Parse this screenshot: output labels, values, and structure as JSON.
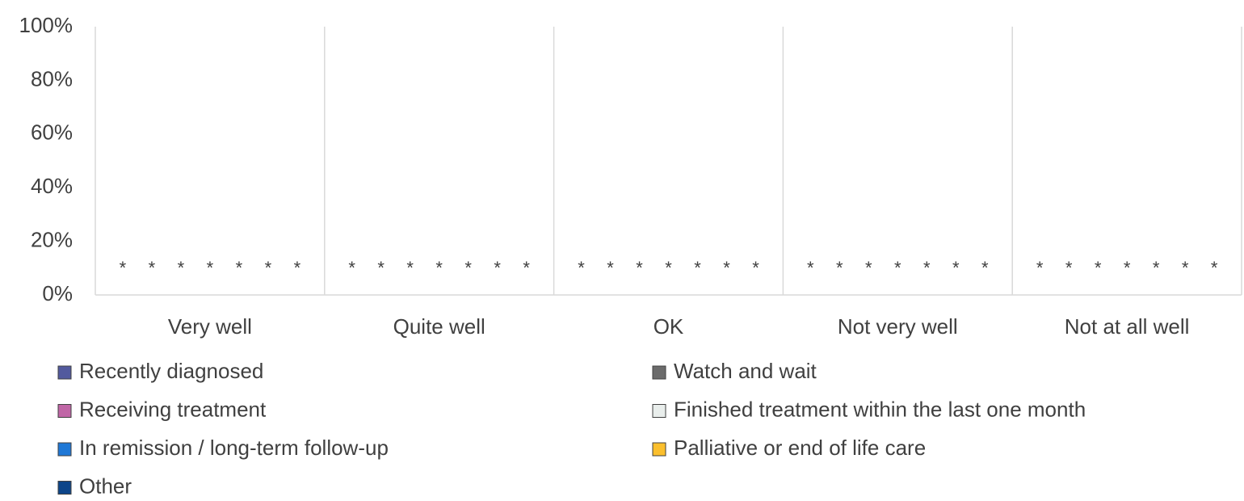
{
  "chart_data": {
    "type": "bar",
    "categories": [
      "Very well",
      "Quite well",
      "OK",
      "Not very well",
      "Not at all well"
    ],
    "series": [
      {
        "name": "Recently diagnosed",
        "color": "#525a9e",
        "values": [
          null,
          null,
          null,
          null,
          null
        ],
        "value_labels": [
          "*",
          "*",
          "*",
          "*",
          "*"
        ]
      },
      {
        "name": "Watch and wait",
        "color": "#6b6b6b",
        "values": [
          null,
          null,
          null,
          null,
          null
        ],
        "value_labels": [
          "*",
          "*",
          "*",
          "*",
          "*"
        ]
      },
      {
        "name": "Receiving treatment",
        "color": "#c066a6",
        "values": [
          null,
          null,
          null,
          null,
          null
        ],
        "value_labels": [
          "*",
          "*",
          "*",
          "*",
          "*"
        ]
      },
      {
        "name": "Finished treatment within the last one month",
        "color": "#e9eeec",
        "values": [
          null,
          null,
          null,
          null,
          null
        ],
        "value_labels": [
          "*",
          "*",
          "*",
          "*",
          "*"
        ]
      },
      {
        "name": "In remission / long-term follow-up",
        "color": "#1f78d6",
        "values": [
          null,
          null,
          null,
          null,
          null
        ],
        "value_labels": [
          "*",
          "*",
          "*",
          "*",
          "*"
        ]
      },
      {
        "name": "Palliative or end of life care",
        "color": "#fbbf2d",
        "values": [
          null,
          null,
          null,
          null,
          null
        ],
        "value_labels": [
          "*",
          "*",
          "*",
          "*",
          "*"
        ]
      },
      {
        "name": "Other",
        "color": "#0d4589",
        "values": [
          null,
          null,
          null,
          null,
          null
        ],
        "value_labels": [
          "*",
          "*",
          "*",
          "*",
          "*"
        ]
      }
    ],
    "ylim": [
      0,
      100
    ],
    "yticks": [
      {
        "value": 0,
        "label": "0%"
      },
      {
        "value": 20,
        "label": "20%"
      },
      {
        "value": 40,
        "label": "40%"
      },
      {
        "value": 60,
        "label": "60%"
      },
      {
        "value": 80,
        "label": "80%"
      },
      {
        "value": 100,
        "label": "100%"
      }
    ],
    "grid": false
  }
}
